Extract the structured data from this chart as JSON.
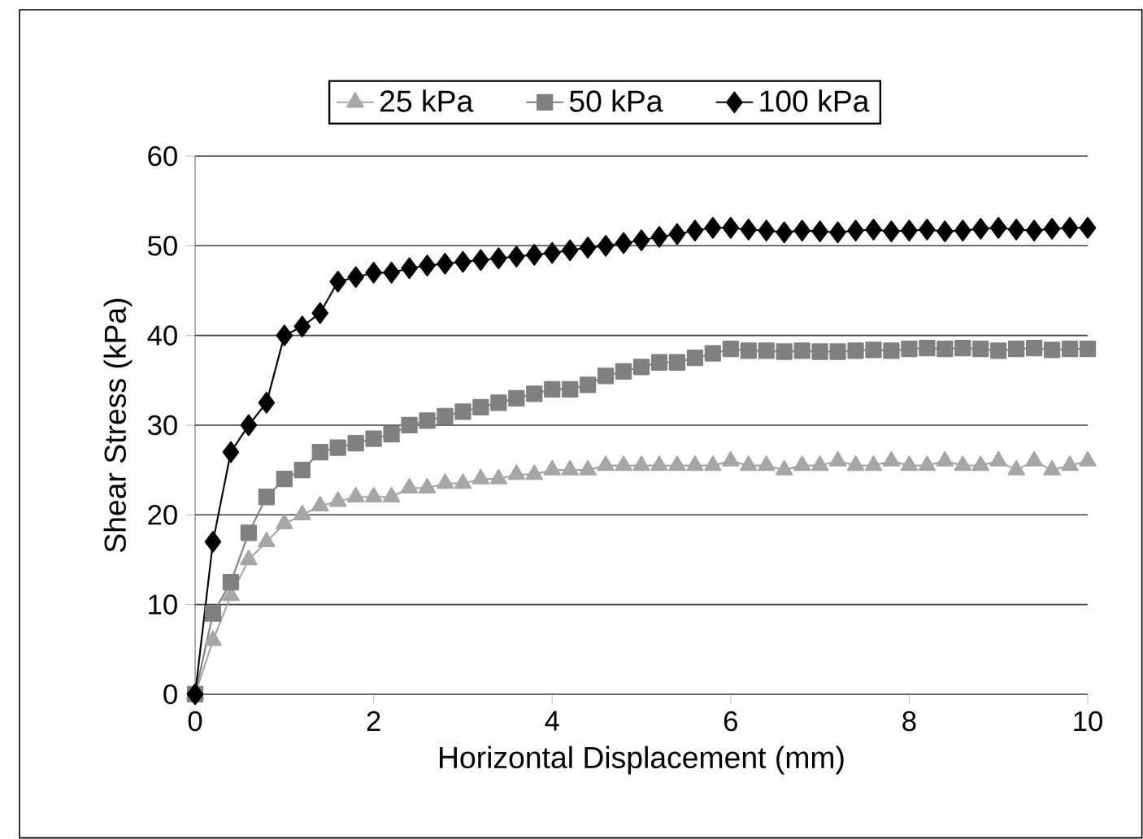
{
  "chart_data": {
    "type": "line",
    "xlabel": "Horizontal Displacement (mm)",
    "ylabel": "Shear Stress (kPa)",
    "x": [
      0,
      0.2,
      0.4,
      0.6,
      0.8,
      1,
      1.2,
      1.4,
      1.6,
      1.8,
      2,
      2.2,
      2.4,
      2.6,
      2.8,
      3,
      3.2,
      3.4,
      3.6,
      3.8,
      4,
      4.2,
      4.4,
      4.6,
      4.8,
      5,
      5.2,
      5.4,
      5.6,
      5.8,
      6,
      6.2,
      6.4,
      6.6,
      6.8,
      7,
      7.2,
      7.4,
      7.6,
      7.8,
      8,
      8.2,
      8.4,
      8.6,
      8.8,
      9,
      9.2,
      9.4,
      9.6,
      9.8,
      10
    ],
    "series": [
      {
        "name": "25 kPa",
        "color": "#a6a6a6",
        "marker": "triangle",
        "values": [
          0,
          6,
          11,
          15,
          17,
          19,
          20,
          21,
          21.5,
          22,
          22,
          22,
          23,
          23,
          23.5,
          23.5,
          24,
          24,
          24.5,
          24.5,
          25,
          25,
          25,
          25.5,
          25.5,
          25.5,
          25.5,
          25.5,
          25.5,
          25.5,
          26,
          25.5,
          25.5,
          25,
          25.5,
          25.5,
          26,
          25.5,
          25.5,
          26,
          25.5,
          25.5,
          26,
          25.5,
          25.5,
          26,
          25,
          26,
          25,
          25.5,
          26
        ]
      },
      {
        "name": "50 kPa",
        "color": "#808080",
        "marker": "square",
        "values": [
          0,
          9,
          12.5,
          18,
          22,
          24,
          25,
          27,
          27.5,
          28,
          28.5,
          29,
          30,
          30.5,
          31,
          31.5,
          32,
          32.5,
          33,
          33.5,
          34,
          34,
          34.5,
          35.5,
          36,
          36.5,
          37,
          37,
          37.5,
          38,
          38.5,
          38.3,
          38.3,
          38.2,
          38.3,
          38.2,
          38.2,
          38.3,
          38.4,
          38.3,
          38.5,
          38.6,
          38.5,
          38.6,
          38.5,
          38.3,
          38.5,
          38.6,
          38.4,
          38.5,
          38.5
        ]
      },
      {
        "name": "100 kPa",
        "color": "#000000",
        "marker": "diamond",
        "values": [
          0,
          17,
          27,
          30,
          32.5,
          40,
          41,
          42.5,
          46,
          46.5,
          47,
          47,
          47.5,
          47.8,
          48,
          48.2,
          48.4,
          48.6,
          48.8,
          49,
          49.2,
          49.5,
          49.8,
          50,
          50.3,
          50.6,
          51,
          51.3,
          51.7,
          52,
          52,
          51.8,
          51.7,
          51.5,
          51.7,
          51.6,
          51.5,
          51.7,
          51.8,
          51.6,
          51.7,
          51.8,
          51.6,
          51.7,
          51.9,
          52,
          51.8,
          51.7,
          51.9,
          52,
          52
        ]
      }
    ],
    "xlim": [
      0,
      10
    ],
    "xticks": [
      0,
      2,
      4,
      6,
      8,
      10
    ],
    "ylim": [
      0,
      60
    ],
    "yticks": [
      0,
      10,
      20,
      30,
      40,
      50,
      60
    ],
    "grid": "y",
    "legend": "top",
    "line_style": "solid"
  }
}
